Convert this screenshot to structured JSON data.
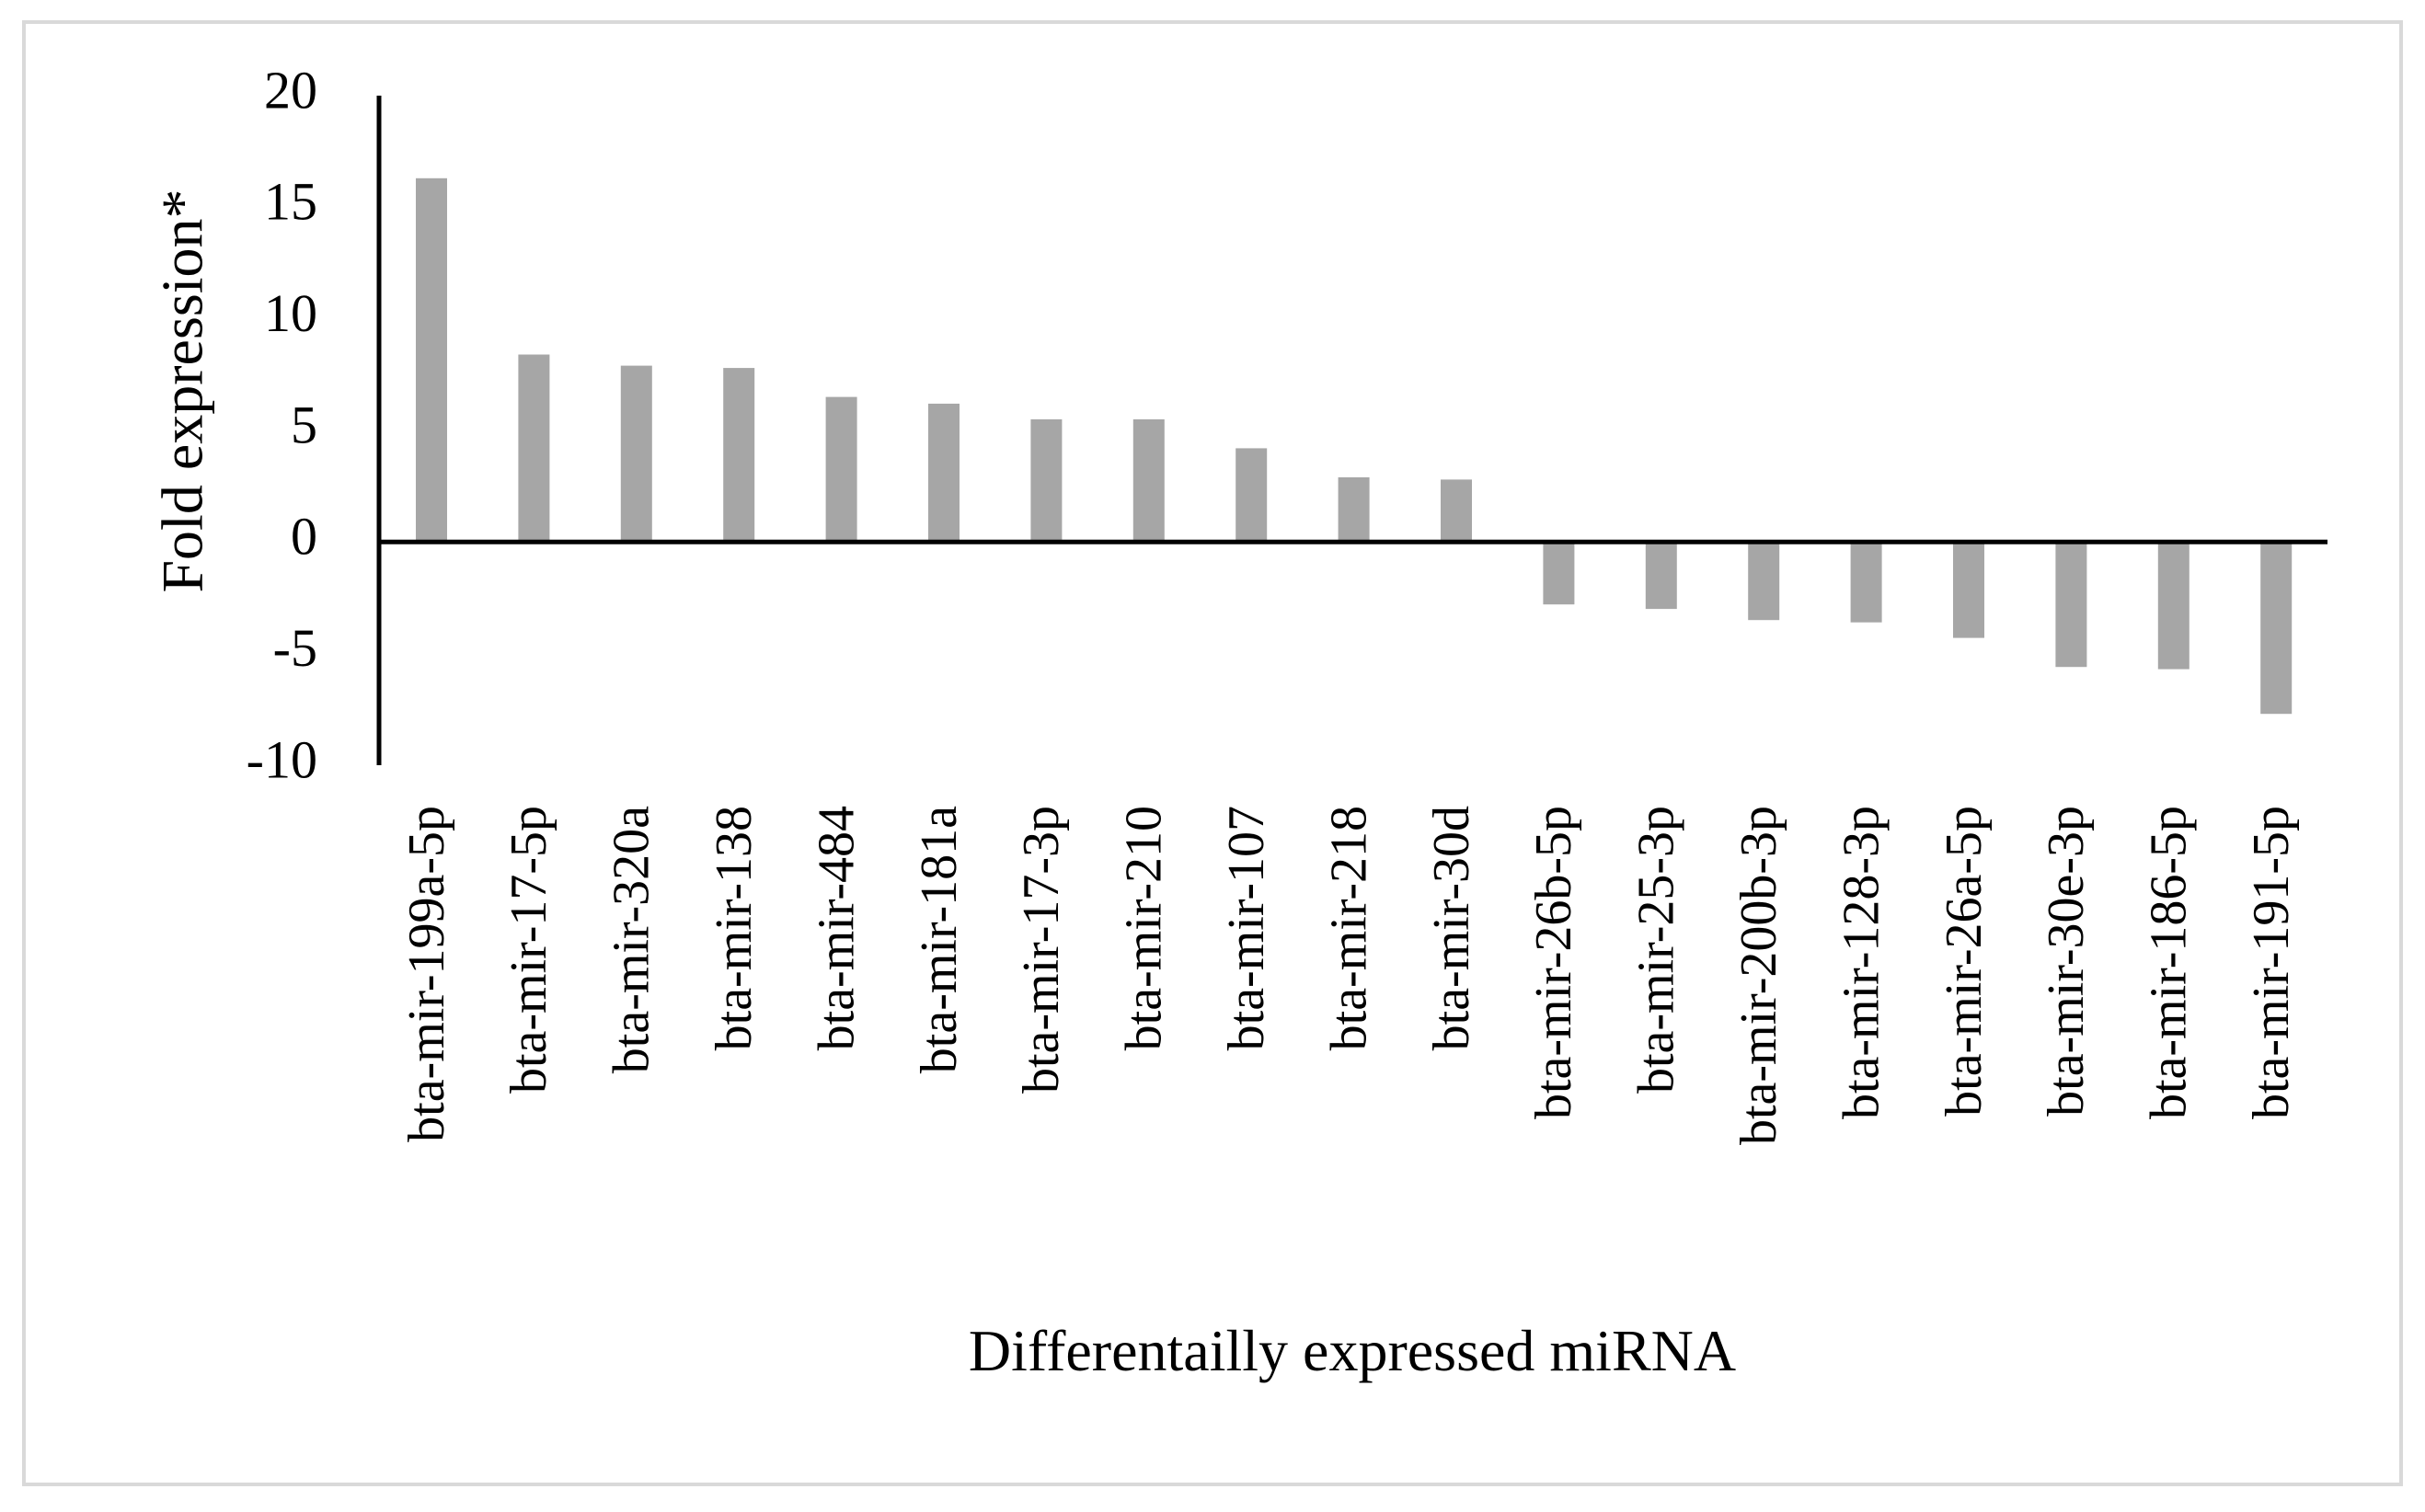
{
  "colors": {
    "bar": "#a6a6a6",
    "axis": "#000000",
    "frame": "#d9d9d9",
    "background": "#ffffff"
  },
  "chart_data": {
    "type": "bar",
    "title": "",
    "xlabel": "Differentailly expressed miRNA",
    "ylabel": "Fold expression*",
    "ylim": [
      -10,
      20
    ],
    "yticks": [
      "20",
      "15",
      "10",
      "5",
      "0",
      "-5",
      "-10"
    ],
    "ytick_values": [
      20,
      15,
      10,
      5,
      0,
      -5,
      -10
    ],
    "grid": false,
    "legend": "none",
    "categories": [
      "bta-mir-199a-5p",
      "bta-mir-17-5p",
      "bta-mir-320a",
      "bta-mir-138",
      "bta-mir-484",
      "bta-mir-181a",
      "bta-mir-17-3p",
      "bta-mir-210",
      "bta-mir-107",
      "bta-mir-218",
      "bta-mir-30d",
      "bta-mir-26b-5p",
      "bta-mir-25-3p",
      "bta-mir-200b-3p",
      "bta-mir-128-3p",
      "bta-mir-26a-5p",
      "bta-mir-30e-3p",
      "bta-mir-186-5p",
      "bta-mir-191-5p"
    ],
    "values": [
      16.3,
      8.4,
      7.9,
      7.8,
      6.5,
      6.2,
      5.5,
      5.5,
      4.2,
      2.9,
      2.8,
      -2.8,
      -3.0,
      -3.5,
      -3.6,
      -4.3,
      -5.6,
      -5.7,
      -7.7
    ]
  }
}
